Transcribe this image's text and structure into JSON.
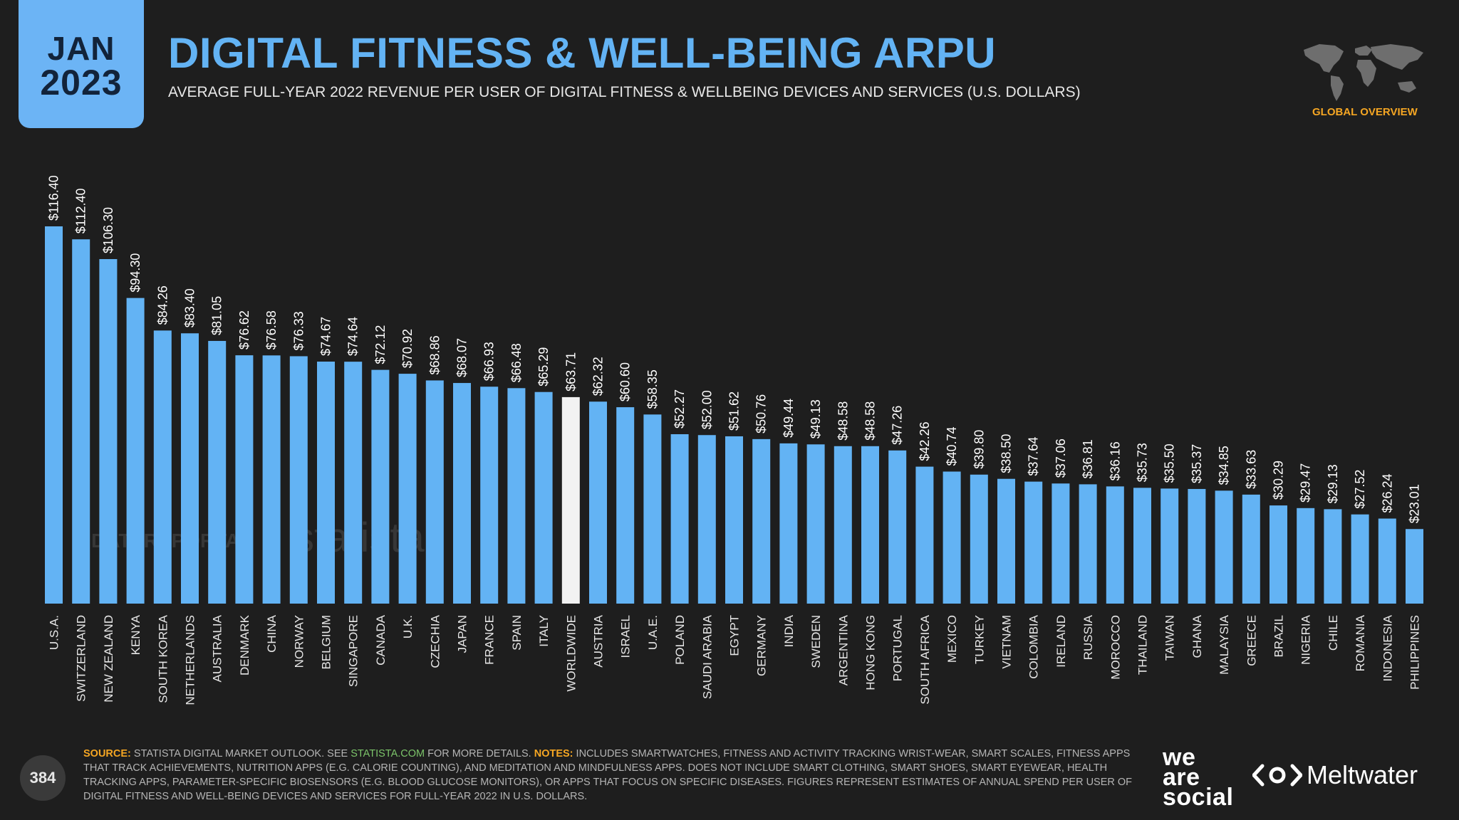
{
  "header": {
    "month": "JAN",
    "year": "2023",
    "title": "DIGITAL FITNESS & WELL-BEING ARPU",
    "subtitle": "AVERAGE FULL-YEAR 2022 REVENUE PER USER OF DIGITAL FITNESS & WELLBEING DEVICES AND SERVICES (U.S. DOLLARS)",
    "overview_label": "GLOBAL OVERVIEW"
  },
  "watermarks": {
    "datareportal": "DATAREPORTAL",
    "statista": "statista"
  },
  "colors": {
    "bar": "#63b3f4",
    "highlight_bar": "#f2f2f2",
    "background": "#1e1e1e",
    "accent": "#f5a623"
  },
  "chart_data": {
    "type": "bar",
    "title": "DIGITAL FITNESS & WELL-BEING ARPU",
    "categories": [
      "U.S.A.",
      "SWITZERLAND",
      "NEW ZEALAND",
      "KENYA",
      "SOUTH KOREA",
      "NETHERLANDS",
      "AUSTRALIA",
      "DENMARK",
      "CHINA",
      "NORWAY",
      "BELGIUM",
      "SINGAPORE",
      "CANADA",
      "U.K.",
      "CZECHIA",
      "JAPAN",
      "FRANCE",
      "SPAIN",
      "ITALY",
      "WORLDWIDE",
      "AUSTRIA",
      "ISRAEL",
      "U.A.E.",
      "POLAND",
      "SAUDI ARABIA",
      "EGYPT",
      "GERMANY",
      "INDIA",
      "SWEDEN",
      "ARGENTINA",
      "HONG KONG",
      "PORTUGAL",
      "SOUTH AFRICA",
      "MEXICO",
      "TURKEY",
      "VIETNAM",
      "COLOMBIA",
      "IRELAND",
      "RUSSIA",
      "MOROCCO",
      "THAILAND",
      "TAIWAN",
      "GHANA",
      "MALAYSIA",
      "GREECE",
      "BRAZIL",
      "NIGERIA",
      "CHILE",
      "ROMANIA",
      "INDONESIA",
      "PHILIPPINES"
    ],
    "values": [
      116.4,
      112.4,
      106.3,
      94.3,
      84.26,
      83.4,
      81.05,
      76.62,
      76.58,
      76.33,
      74.67,
      74.64,
      72.12,
      70.92,
      68.86,
      68.07,
      66.93,
      66.48,
      65.29,
      63.71,
      62.32,
      60.6,
      58.35,
      52.27,
      52.0,
      51.62,
      50.76,
      49.44,
      49.13,
      48.58,
      48.58,
      47.26,
      42.26,
      40.74,
      39.8,
      38.5,
      37.64,
      37.06,
      36.81,
      36.16,
      35.73,
      35.5,
      35.37,
      34.85,
      33.63,
      30.29,
      29.47,
      29.13,
      27.52,
      26.24,
      23.01
    ],
    "labels": [
      "$116.40",
      "$112.40",
      "$106.30",
      "$94.30",
      "$84.26",
      "$83.40",
      "$81.05",
      "$76.62",
      "$76.58",
      "$76.33",
      "$74.67",
      "$74.64",
      "$72.12",
      "$70.92",
      "$68.86",
      "$68.07",
      "$66.93",
      "$66.48",
      "$65.29",
      "$63.71",
      "$62.32",
      "$60.60",
      "$58.35",
      "$52.27",
      "$52.00",
      "$51.62",
      "$50.76",
      "$49.44",
      "$49.13",
      "$48.58",
      "$48.58",
      "$47.26",
      "$42.26",
      "$40.74",
      "$39.80",
      "$38.50",
      "$37.64",
      "$37.06",
      "$36.81",
      "$36.16",
      "$35.73",
      "$35.50",
      "$35.37",
      "$34.85",
      "$33.63",
      "$30.29",
      "$29.47",
      "$29.13",
      "$27.52",
      "$26.24",
      "$23.01"
    ],
    "highlight": "WORLDWIDE",
    "ylim": [
      0,
      116.4
    ],
    "grid": false
  },
  "footer": {
    "source_label": "SOURCE:",
    "source_text": " STATISTA DIGITAL MARKET OUTLOOK. SEE ",
    "source_link": "STATISTA.COM",
    "source_after": " FOR MORE DETAILS. ",
    "notes_label": "NOTES:",
    "notes_text": " INCLUDES SMARTWATCHES, FITNESS AND ACTIVITY TRACKING WRIST-WEAR, SMART SCALES, FITNESS APPS THAT TRACK ACHIEVEMENTS, NUTRITION APPS (E.G. CALORIE COUNTING), AND MEDITATION AND MINDFULNESS APPS. DOES NOT INCLUDE SMART CLOTHING, SMART SHOES, SMART EYEWEAR, HEALTH TRACKING APPS, PARAMETER-SPECIFIC BIOSENSORS (E.G. BLOOD GLUCOSE MONITORS), OR APPS THAT FOCUS ON SPECIFIC DISEASES. FIGURES REPRESENT ESTIMATES OF ANNUAL SPEND PER USER OF DIGITAL FITNESS AND WELL-BEING DEVICES AND SERVICES FOR FULL-YEAR 2022 IN U.S. DOLLARS.",
    "page_number": "384",
    "brand_line1": "we",
    "brand_line2": "are",
    "brand_line3": "social",
    "partner": "Meltwater"
  }
}
